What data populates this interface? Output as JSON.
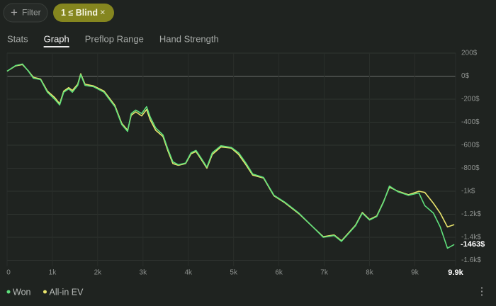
{
  "filters": [
    {
      "label": "Filter"
    },
    {
      "label": "1 ≤ Blind"
    }
  ],
  "tabs": [
    "Stats",
    "Graph",
    "Preflop Range",
    "Hand Strength"
  ],
  "active_tab": 1,
  "chart_data": {
    "type": "line",
    "x": [
      0,
      190,
      340,
      470,
      580,
      740,
      890,
      1050,
      1160,
      1250,
      1360,
      1440,
      1560,
      1625,
      1720,
      1910,
      2140,
      2380,
      2530,
      2660,
      2740,
      2840,
      2970,
      3080,
      3160,
      3280,
      3440,
      3550,
      3660,
      3780,
      3940,
      4060,
      4170,
      4280,
      4410,
      4530,
      4720,
      4950,
      5110,
      5270,
      5420,
      5660,
      5890,
      6130,
      6440,
      6750,
      6980,
      7220,
      7380,
      7530,
      7690,
      7840,
      8000,
      8160,
      8310,
      8440,
      8630,
      8860,
      9090,
      9220,
      9410,
      9560,
      9720,
      9870
    ],
    "series": [
      {
        "name": "Won",
        "color": "#5fe07c",
        "end_label": "-1463$",
        "values": [
          43,
          92,
          105,
          43,
          -18,
          -30,
          -140,
          -200,
          -250,
          -140,
          -110,
          -140,
          -80,
          12,
          -80,
          -92,
          -140,
          -265,
          -420,
          -480,
          -325,
          -295,
          -325,
          -265,
          -355,
          -450,
          -510,
          -635,
          -745,
          -770,
          -755,
          -665,
          -645,
          -710,
          -790,
          -665,
          -605,
          -620,
          -665,
          -755,
          -850,
          -880,
          -1035,
          -1095,
          -1190,
          -1310,
          -1400,
          -1385,
          -1435,
          -1370,
          -1300,
          -1190,
          -1250,
          -1220,
          -1095,
          -955,
          -1005,
          -1035,
          -1015,
          -1125,
          -1190,
          -1310,
          -1495,
          -1463
        ]
      },
      {
        "name": "All-in EV",
        "color": "#e9e46c",
        "values": [
          43,
          90,
          100,
          45,
          -10,
          -25,
          -130,
          -185,
          -240,
          -130,
          -100,
          -125,
          -70,
          20,
          -70,
          -85,
          -130,
          -255,
          -410,
          -470,
          -340,
          -310,
          -345,
          -290,
          -380,
          -470,
          -525,
          -650,
          -760,
          -775,
          -760,
          -675,
          -655,
          -720,
          -800,
          -680,
          -615,
          -625,
          -680,
          -770,
          -860,
          -885,
          -1040,
          -1100,
          -1195,
          -1310,
          -1395,
          -1380,
          -1430,
          -1365,
          -1295,
          -1185,
          -1245,
          -1215,
          -1090,
          -965,
          -1000,
          -1030,
          -1000,
          -1010,
          -1105,
          -1190,
          -1310,
          -1290
        ]
      }
    ],
    "xlim": [
      0,
      9900
    ],
    "xticks": [
      0,
      {
        "value": 1000,
        "label": "1k"
      },
      {
        "value": 2000,
        "label": "2k"
      },
      {
        "value": 3000,
        "label": "3k"
      },
      {
        "value": 4000,
        "label": "4k"
      },
      {
        "value": 5000,
        "label": "5k"
      },
      {
        "value": 6000,
        "label": "6k"
      },
      {
        "value": 7000,
        "label": "7k"
      },
      {
        "value": 8000,
        "label": "8k"
      },
      {
        "value": 9000,
        "label": "9k"
      },
      {
        "value": 9900,
        "label": "9.9k"
      }
    ],
    "ylim": [
      -1650,
      200
    ],
    "yticks": [
      {
        "value": 200,
        "label": "200$"
      },
      {
        "value": 0,
        "label": "0$"
      },
      {
        "value": -200,
        "label": "-200$"
      },
      {
        "value": -400,
        "label": "-400$"
      },
      {
        "value": -600,
        "label": "-600$"
      },
      {
        "value": -800,
        "label": "-800$"
      },
      {
        "value": -1000,
        "label": "-1k$"
      },
      {
        "value": -1200,
        "label": "-1.2k$"
      },
      {
        "value": -1400,
        "label": "-1.4k$"
      },
      {
        "value": -1600,
        "label": "-1.6k$"
      }
    ],
    "grid": true
  }
}
